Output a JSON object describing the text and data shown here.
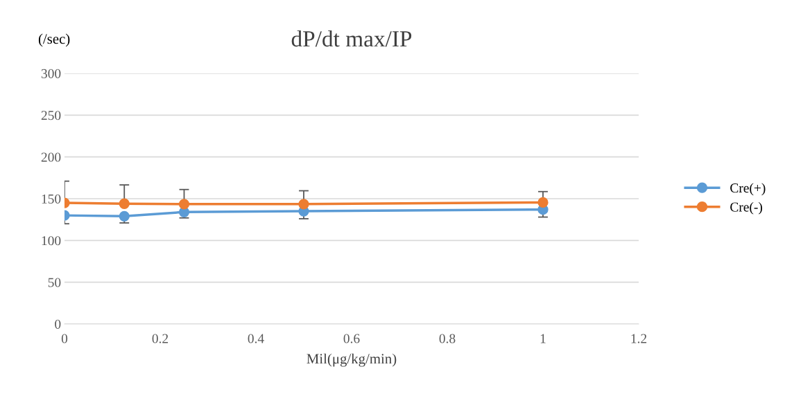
{
  "chart_data": {
    "type": "line",
    "title": "dP/dt max/IP",
    "xlabel": "Mil(μg/kg/min)",
    "ylabel": "(/sec)",
    "x": [
      0,
      0.125,
      0.25,
      0.5,
      1
    ],
    "series": [
      {
        "name": "Cre(+)",
        "color": "#5b9bd5",
        "values": [
          130,
          129,
          134,
          135,
          137
        ],
        "errors": [
          [
            120,
            130
          ],
          [
            121,
            129
          ],
          [
            127,
            134
          ],
          [
            126,
            135
          ],
          [
            128,
            137
          ]
        ]
      },
      {
        "name": "Cre(-)",
        "color": "#ed7d31",
        "values": [
          145,
          144,
          143.5,
          143.5,
          145.5
        ],
        "errors": [
          [
            145,
            171
          ],
          [
            144,
            166.5
          ],
          [
            143.5,
            161
          ],
          [
            143.5,
            159.5
          ],
          [
            145.5,
            158.5
          ]
        ]
      }
    ],
    "xlim": [
      0,
      1.2
    ],
    "xticks": [
      {
        "value": 0,
        "label": "0"
      },
      0.2,
      0.4,
      0.6,
      0.8,
      {
        "value": 1,
        "label": "1"
      },
      1.2
    ],
    "ylim": [
      0,
      300
    ],
    "yticks": [
      0,
      50,
      100,
      150,
      200,
      250,
      300
    ],
    "grid": "y",
    "legend": "right",
    "marker": "circle",
    "line_style": "solid"
  }
}
